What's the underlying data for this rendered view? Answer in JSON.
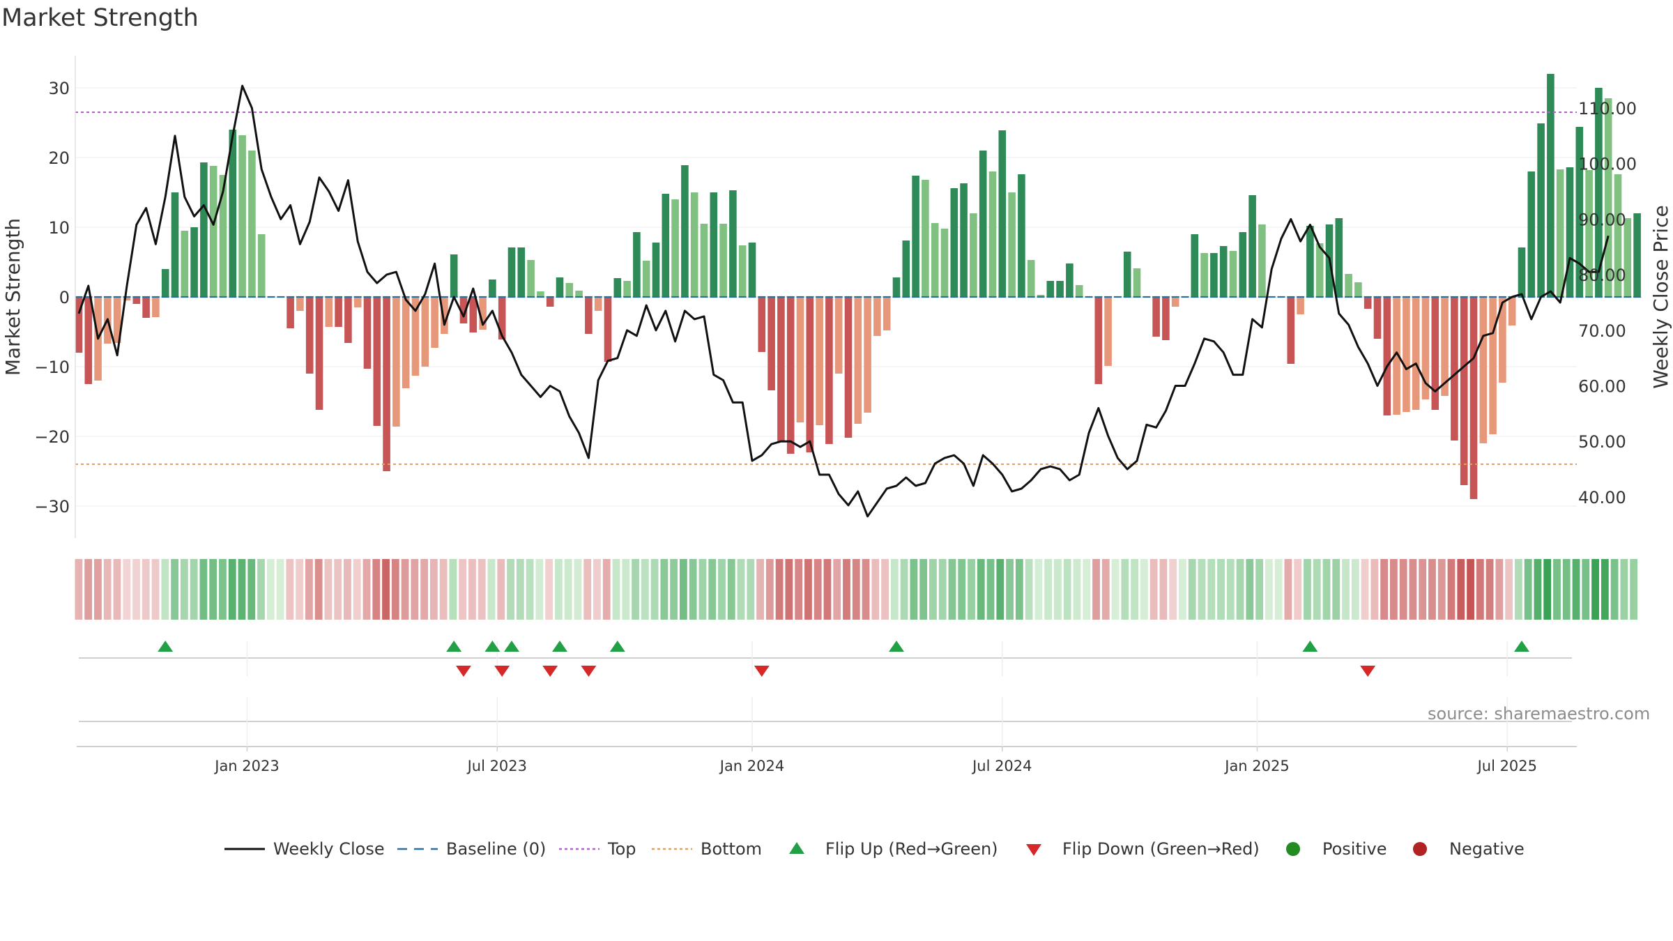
{
  "chart_data": {
    "type": "bar",
    "title": "Market Strength",
    "ylabel": "Market Strength",
    "y2label": "Weekly Close Price",
    "ylim": [
      -34.5,
      35
    ],
    "y2lim": [
      30.3,
      116.7
    ],
    "yticks": [
      30,
      20,
      10,
      0,
      -10,
      -20,
      -30
    ],
    "ytick_labels": [
      "30",
      "20",
      "10",
      "0",
      "−10",
      "−20",
      "−30"
    ],
    "y2ticks": [
      110,
      100,
      90,
      80,
      70,
      60,
      50,
      40
    ],
    "y2tick_labels": [
      "110.00",
      "100.00",
      "90.00",
      "80.00",
      "70.00",
      "60.00",
      "50.00",
      "40.00"
    ],
    "x_start": "2022-09-01",
    "x_end": "2025-10-24",
    "xtick_labels": [
      "Jan 2023",
      "Jul 2023",
      "Jan 2024",
      "Jul 2024",
      "Jan 2025",
      "Jul 2025"
    ],
    "xtick_index": [
      17.5,
      43.5,
      70,
      96,
      122.5,
      148.5
    ],
    "top_line": 26.5,
    "bottom_line": -24.0,
    "baseline": 0,
    "weeks": 159,
    "strength": [
      -8,
      -12.5,
      -12,
      -6.7,
      -6.6,
      -0.5,
      -1,
      -3,
      -2.9,
      4,
      15,
      9.5,
      10,
      19.3,
      18.8,
      17.5,
      24,
      23.2,
      21,
      9,
      0,
      0,
      -4.5,
      -2,
      -11,
      -16.2,
      -4.3,
      -4.3,
      -6.6,
      -1.5,
      -10.3,
      -18.5,
      -25,
      -18.6,
      -13.1,
      -11.3,
      -10,
      -7.3,
      -5.3,
      6.1,
      -3.8,
      -5.1,
      -4.7,
      2.5,
      -6.1,
      7.1,
      7.1,
      5.3,
      0.8,
      -1.4,
      2.8,
      2,
      0.9,
      -5.3,
      -2,
      -9.3,
      2.7,
      2.3,
      9.3,
      5.2,
      7.8,
      14.8,
      14,
      18.9,
      15,
      10.5,
      15,
      10.5,
      15.3,
      7.4,
      7.8,
      -7.9,
      -13.4,
      -20.8,
      -22.5,
      -18,
      -22.3,
      -18.4,
      -21.1,
      -11,
      -20.2,
      -18.2,
      -16.6,
      -5.6,
      -4.8,
      2.8,
      8.1,
      17.4,
      16.8,
      10.6,
      9.8,
      15.6,
      16.3,
      12,
      21,
      18,
      23.9,
      15,
      17.6,
      5.3,
      0.3,
      2.3,
      2.3,
      4.8,
      1.7,
      0,
      -12.5,
      -9.9,
      0,
      6.5,
      4.1,
      0,
      -5.7,
      -6.2,
      -1.4,
      0,
      9,
      6.3,
      6.3,
      7.3,
      6.6,
      9.3,
      14.6,
      10.4,
      0,
      0,
      -9.6,
      -2.5,
      10.2,
      7.7,
      10.4,
      11.3,
      3.3,
      2.1,
      -1.7,
      -6,
      -17,
      -16.9,
      -16.5,
      -16.2,
      -14.7,
      -16.2,
      -14.2,
      -20.6,
      -27,
      -29,
      -21,
      -19.7,
      -12.3,
      -4.1,
      7.1,
      18,
      24.9,
      32,
      18.3,
      18.6,
      24.4,
      18.2,
      30,
      28.5,
      17.6,
      11.3,
      12
    ],
    "close": [
      73,
      78,
      68.5,
      72,
      65.5,
      78,
      89,
      92,
      85.5,
      94,
      105,
      94,
      90.5,
      92.5,
      89,
      95,
      105,
      114,
      110,
      99,
      94,
      90,
      92.5,
      85.5,
      89.5,
      97.5,
      95,
      91.5,
      97,
      86,
      80.5,
      78.5,
      80,
      80.5,
      75.5,
      73.5,
      76.5,
      82,
      71,
      76,
      72.5,
      77.5,
      71,
      73.5,
      69,
      66,
      62,
      60,
      58,
      60,
      59,
      54.5,
      51.5,
      47,
      61,
      64.5,
      65,
      70,
      69,
      74.5,
      70,
      73.5,
      68,
      73.5,
      72,
      72.5,
      62,
      61,
      57,
      57,
      46.5,
      47.5,
      49.5,
      50,
      50,
      49,
      50,
      44,
      44,
      40.5,
      38.5,
      41,
      36.5,
      39,
      41.5,
      42,
      43.5,
      42,
      42.5,
      46,
      47,
      47.5,
      46,
      42,
      47.5,
      46,
      44,
      41,
      41.5,
      43,
      45,
      45.5,
      45,
      43,
      44,
      51.5,
      56,
      51,
      47,
      45,
      46.5,
      53,
      52.5,
      55.5,
      60,
      60,
      64,
      68.5,
      68,
      66,
      62,
      62,
      72,
      70.5,
      81,
      86.5,
      90,
      86,
      89,
      85,
      83,
      73,
      71,
      67,
      64,
      60,
      63.5,
      66,
      63,
      64,
      60.5,
      59,
      60.5,
      62,
      63.5,
      65,
      69,
      69.5,
      75,
      76,
      76.5,
      72,
      76,
      77,
      75,
      83,
      82,
      80.5,
      80.5,
      87
    ]
  },
  "legend": [
    {
      "key": "weekly-close",
      "label": "Weekly Close"
    },
    {
      "key": "baseline",
      "label": "Baseline (0)"
    },
    {
      "key": "top",
      "label": "Top"
    },
    {
      "key": "bottom",
      "label": "Bottom"
    },
    {
      "key": "flip-up",
      "label": "Flip Up (Red→Green)"
    },
    {
      "key": "flip-down",
      "label": "Flip Down (Green→Red)"
    },
    {
      "key": "positive",
      "label": "Positive"
    },
    {
      "key": "negative",
      "label": "Negative"
    }
  ],
  "source": "source: sharemaestro.com",
  "colors": {
    "pos_dark": "#2e8b57",
    "pos_light": "#80c080",
    "neg_dark": "#c85555",
    "neg_light": "#e8987a",
    "close_line": "#111111",
    "baseline": "#2b6f9e",
    "top": "#b15fcf",
    "bottom": "#e0a060",
    "flip_up": "#22a045",
    "flip_down": "#d62828",
    "legend_positive": "#228b22",
    "legend_negative": "#b22222"
  }
}
